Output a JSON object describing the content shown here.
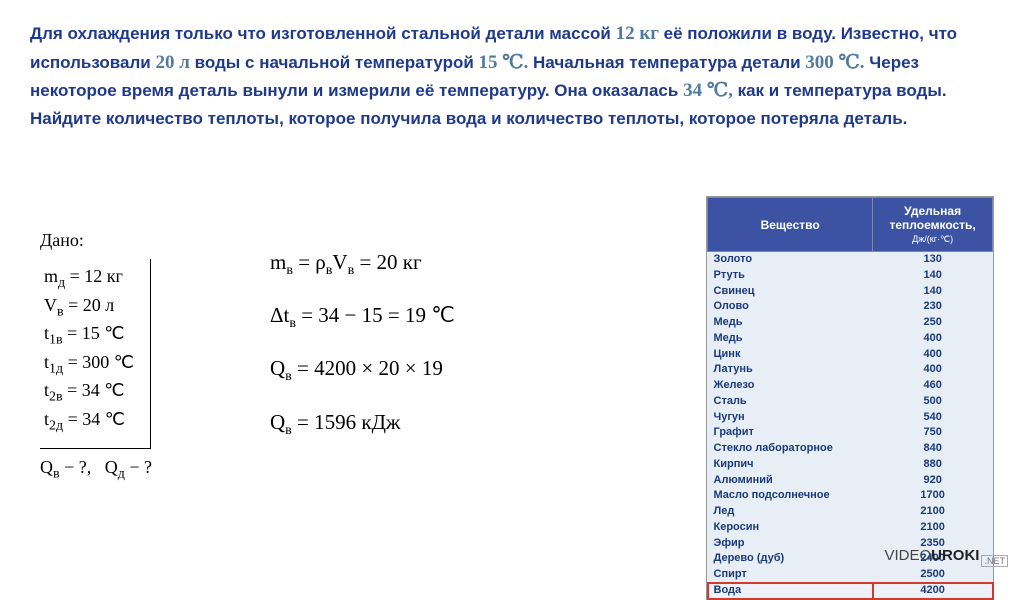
{
  "problem": {
    "p1_a": "Для охлаждения только что изготовленной стальной детали массой ",
    "p1_mass": "12 кг",
    "p1_b": " её положили в воду. Известно, что использовали ",
    "p1_vol": "20 л",
    "p1_c": " воды с начальной температурой ",
    "p1_t1": "15 ℃.",
    "p1_d": " Начальная температура детали ",
    "p1_t2": "300 ℃.",
    "p1_e": " Через некоторое время деталь вынули и измерили её температуру. Она оказалась ",
    "p1_t3": "34 ℃,",
    "p1_f": " как и температура воды. Найдите количество теплоты, которое получила вода и количество теплоты, которое потеряла деталь."
  },
  "given": {
    "title": "Дано:",
    "lines": {
      "m_d": "mд = 12 кг",
      "v_v": "Vв = 20 л",
      "t1v": "t₁в = 15 ℃",
      "t1d": "t₁д = 300 ℃",
      "t2v": "t₂в = 34 ℃",
      "t2d": "t₂д = 34 ℃"
    },
    "find": "Qв − ?,   Qд − ?"
  },
  "eq": {
    "e1": "mв = ρвVв = 20 кг",
    "e2": "Δtв = 34 − 15 = 19 ℃",
    "e3": "Qв = 4200 × 20 × 19",
    "e4": "Qв = 1596 кДж"
  },
  "table": {
    "h1": "Вещество",
    "h2": "Удельная теплоемкость,",
    "h2_unit": "Дж/(кг·℃)",
    "rows": [
      {
        "name": "Золото",
        "val": "130"
      },
      {
        "name": "Ртуть",
        "val": "140"
      },
      {
        "name": "Свинец",
        "val": "140"
      },
      {
        "name": "Олово",
        "val": "230"
      },
      {
        "name": "Медь",
        "val": "250"
      },
      {
        "name": "Медь",
        "val": "400"
      },
      {
        "name": "Цинк",
        "val": "400"
      },
      {
        "name": "Латунь",
        "val": "400"
      },
      {
        "name": "Железо",
        "val": "460"
      },
      {
        "name": "Сталь",
        "val": "500"
      },
      {
        "name": "Чугун",
        "val": "540"
      },
      {
        "name": "Графит",
        "val": "750"
      },
      {
        "name": "Стекло лабораторное",
        "val": "840"
      },
      {
        "name": "Кирпич",
        "val": "880"
      },
      {
        "name": "Алюминий",
        "val": "920"
      },
      {
        "name": "Масло подсолнечное",
        "val": "1700"
      },
      {
        "name": "Лед",
        "val": "2100"
      },
      {
        "name": "Керосин",
        "val": "2100"
      },
      {
        "name": "Эфир",
        "val": "2350"
      },
      {
        "name": "Дерево (дуб)",
        "val": "2400"
      },
      {
        "name": "Спирт",
        "val": "2500"
      },
      {
        "name": "Вода",
        "val": "4200"
      }
    ],
    "highlight_index": 21
  },
  "watermark": {
    "brand_a": "VIDEO",
    "brand_b": "UROKI",
    "suffix": ".NET"
  }
}
